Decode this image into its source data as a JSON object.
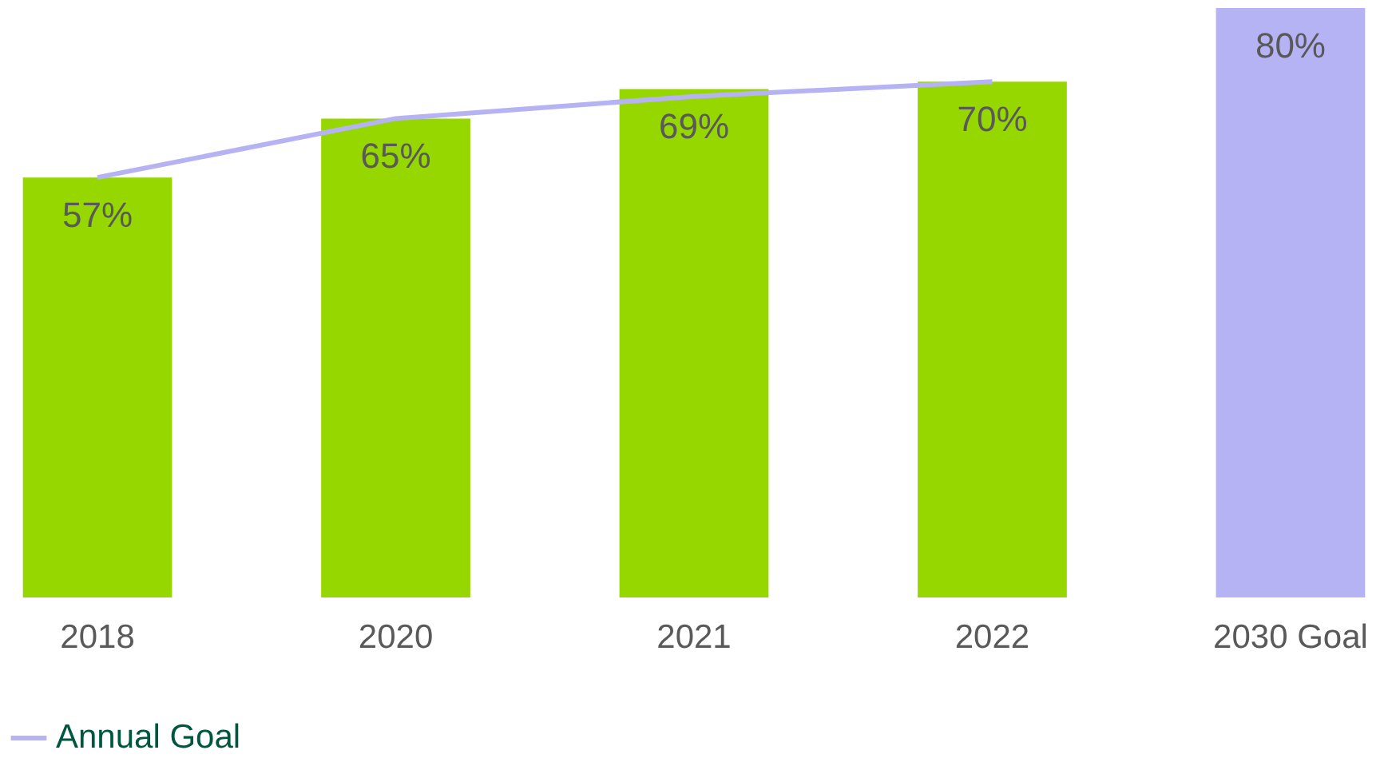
{
  "chart_data": {
    "type": "bar",
    "categories": [
      "2018",
      "2020",
      "2021",
      "2022",
      "2030 Goal"
    ],
    "ylim": [
      0,
      80
    ],
    "tick_labels": "x",
    "grid": false,
    "legend": "bottom",
    "series": [
      {
        "colors": [
          "#97d700",
          "#97d700",
          "#97d700",
          "#97d700",
          "#b5b3f3"
        ],
        "values": [
          57,
          65,
          69,
          70,
          80
        ],
        "value_labels": [
          "57%",
          "65%",
          "69%",
          "70%",
          "80%"
        ]
      },
      {
        "type": "line",
        "name": "Annual Goal",
        "color": "#b5b3f3",
        "values": [
          57,
          65,
          68,
          70,
          null
        ]
      }
    ]
  }
}
